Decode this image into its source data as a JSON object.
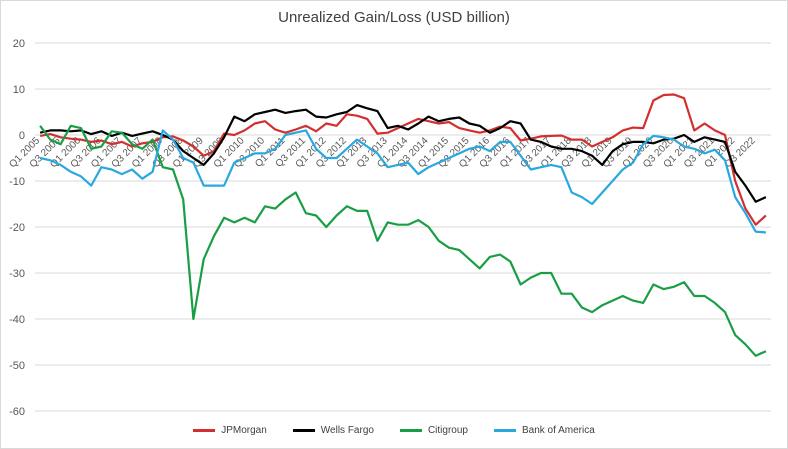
{
  "chart_data": {
    "type": "line",
    "title": "Unrealized Gain/Loss (USD billion)",
    "xlabel": "",
    "ylabel": "",
    "ylim": [
      -60,
      20
    ],
    "y_ticks": [
      20,
      10,
      0,
      -10,
      -20,
      -30,
      -40,
      -50,
      -60
    ],
    "grid": true,
    "legend_position": "bottom",
    "x": [
      "Q1 2005",
      "Q2 2005",
      "Q3 2005",
      "Q4 2005",
      "Q1 2006",
      "Q2 2006",
      "Q3 2006",
      "Q4 2006",
      "Q1 2007",
      "Q2 2007",
      "Q3 2007",
      "Q4 2007",
      "Q1 2008",
      "Q2 2008",
      "Q3 2008",
      "Q4 2008",
      "Q1 2009",
      "Q2 2009",
      "Q3 2009",
      "Q4 2009",
      "Q1 2010",
      "Q2 2010",
      "Q3 2010",
      "Q4 2010",
      "Q1 2011",
      "Q2 2011",
      "Q3 2011",
      "Q4 2011",
      "Q1 2012",
      "Q2 2012",
      "Q3 2012",
      "Q4 2012",
      "Q1 2013",
      "Q2 2013",
      "Q3 2013",
      "Q4 2013",
      "Q1 2014",
      "Q2 2014",
      "Q3 2014",
      "Q4 2014",
      "Q1 2015",
      "Q2 2015",
      "Q3 2015",
      "Q4 2015",
      "Q1 2016",
      "Q2 2016",
      "Q3 2016",
      "Q4 2016",
      "Q1 2017",
      "Q2 2017",
      "Q3 2017",
      "Q4 2017",
      "Q1 2018",
      "Q2 2018",
      "Q3 2018",
      "Q4 2018",
      "Q1 2019",
      "Q2 2019",
      "Q3 2019",
      "Q4 2019",
      "Q1 2020",
      "Q2 2020",
      "Q3 2020",
      "Q4 2020",
      "Q1 2021",
      "Q2 2021",
      "Q3 2021",
      "Q4 2021",
      "Q1 2022",
      "Q2 2022",
      "Q3 2022",
      "Q4 2022"
    ],
    "x_tick_labels": [
      "Q1 2005",
      "Q3 2005",
      "Q1 2006",
      "Q3 2006",
      "Q1 2007",
      "Q3 2007",
      "Q1 2008",
      "Q3 2008",
      "Q1 2009",
      "Q3 2009",
      "Q1 2010",
      "Q3 2010",
      "Q1 2011",
      "Q3 2011",
      "Q1 2012",
      "Q3 2012",
      "Q1 2013",
      "Q3 2013",
      "Q1 2014",
      "Q3 2014",
      "Q1 2015",
      "Q3 2015",
      "Q1 2016",
      "Q3 2016",
      "Q1 2017",
      "Q3 2017",
      "Q1 2018",
      "Q3 2018",
      "Q1 2019",
      "Q3 2019",
      "Q1 2020",
      "Q3 2020",
      "Q1 2021",
      "Q3 2021",
      "Q1 2022",
      "Q3 2022"
    ],
    "series": [
      {
        "name": "JPMorgan",
        "color": "#d32f2f",
        "values": [
          -0.2,
          0.2,
          -0.5,
          -0.8,
          -1,
          -1.5,
          -1.2,
          -2,
          -1.5,
          -2.5,
          -1.8,
          -1.5,
          -0.5,
          -0.3,
          -1.2,
          -2.5,
          -4.5,
          -3.5,
          0.3,
          0,
          1,
          2.5,
          3,
          1.2,
          0.5,
          1.2,
          2,
          0.8,
          2.5,
          2,
          4.5,
          4.2,
          3.5,
          0.3,
          0.5,
          1.5,
          2.5,
          3.5,
          3,
          2.5,
          2.8,
          1.5,
          1,
          0.5,
          1,
          1.8,
          1.5,
          -1.2,
          -0.8,
          -0.3,
          -0.2,
          -0.1,
          -1,
          -1,
          -2.5,
          -1.5,
          -0.5,
          1,
          1.6,
          1.5,
          7.5,
          8.7,
          8.8,
          8,
          1,
          2.5,
          1,
          0,
          -10,
          -16,
          -19.5,
          -17.5
        ]
      },
      {
        "name": "Wells Fargo",
        "color": "#000000",
        "values": [
          0.5,
          1,
          1,
          0.8,
          1,
          0.2,
          0.8,
          -0.2,
          0.5,
          -0.2,
          0.3,
          0.8,
          0,
          -1,
          -3.5,
          -5,
          -6.5,
          -4,
          -0.5,
          4,
          3,
          4.5,
          5,
          5.5,
          4.8,
          5.2,
          5.5,
          4,
          3.8,
          4.5,
          5,
          6.5,
          5.8,
          5.2,
          1.5,
          2,
          1.2,
          2.5,
          4,
          3,
          3.5,
          3.8,
          2.5,
          2,
          0.5,
          1.5,
          3,
          2.5,
          -1,
          -1.5,
          -2.5,
          -3,
          -3,
          -3.5,
          -4.5,
          -6.5,
          -3.5,
          -2,
          -1.5,
          -1.5,
          -1.8,
          -1,
          -0.8,
          0,
          -1.5,
          -0.5,
          -1,
          -1.5,
          -8,
          -11,
          -14.5,
          -13.5
        ]
      },
      {
        "name": "Citigroup",
        "color": "#1a9e45",
        "values": [
          2,
          -1,
          -2,
          2,
          1.5,
          -3,
          -2.5,
          0.8,
          0.5,
          -2,
          -3,
          -1,
          -7,
          -7.5,
          -14,
          -40,
          -27,
          -22,
          -18,
          -19,
          -18,
          -19,
          -15.5,
          -16,
          -14,
          -12.5,
          -17,
          -17.5,
          -20,
          -17.5,
          -15.5,
          -16.5,
          -16.5,
          -23,
          -19,
          -19.5,
          -19.5,
          -18.5,
          -20,
          -23,
          -24.5,
          -25,
          -27,
          -29,
          -26.5,
          -26,
          -27.5,
          -32.5,
          -31,
          -30,
          -30,
          -34.5,
          -34.5,
          -37.5,
          -38.5,
          -37,
          -36,
          -35,
          -36,
          -36.5,
          -32.5,
          -33.5,
          -33,
          -32,
          -35,
          -35,
          -36.5,
          -38.5,
          -43.5,
          -45.5,
          -48,
          -47
        ]
      },
      {
        "name": "Bank of America",
        "color": "#29a8e0",
        "values": [
          -5,
          -5.5,
          -6.5,
          -8,
          -9,
          -11,
          -7,
          -7.5,
          -8.5,
          -7.5,
          -9.5,
          -8,
          1,
          -1,
          -5,
          -6,
          -11,
          -11,
          -11,
          -6,
          -5,
          -4,
          -4,
          -3,
          0,
          0.5,
          1,
          -3,
          -5,
          -5,
          -3,
          -1,
          -2.5,
          -4,
          -7,
          -6.5,
          -6,
          -8.5,
          -7,
          -6,
          -5,
          -4,
          -3,
          -2.5,
          -3.5,
          -1.5,
          -1.5,
          -4.5,
          -7.5,
          -7,
          -6.5,
          -7,
          -12.5,
          -13.5,
          -15,
          -12.5,
          -10,
          -7.5,
          -6,
          -2,
          -0.2,
          -0.5,
          -1,
          -2.5,
          -3,
          -4,
          -3.2,
          -5.5,
          -13.5,
          -17,
          -21,
          -21.2
        ]
      }
    ]
  }
}
